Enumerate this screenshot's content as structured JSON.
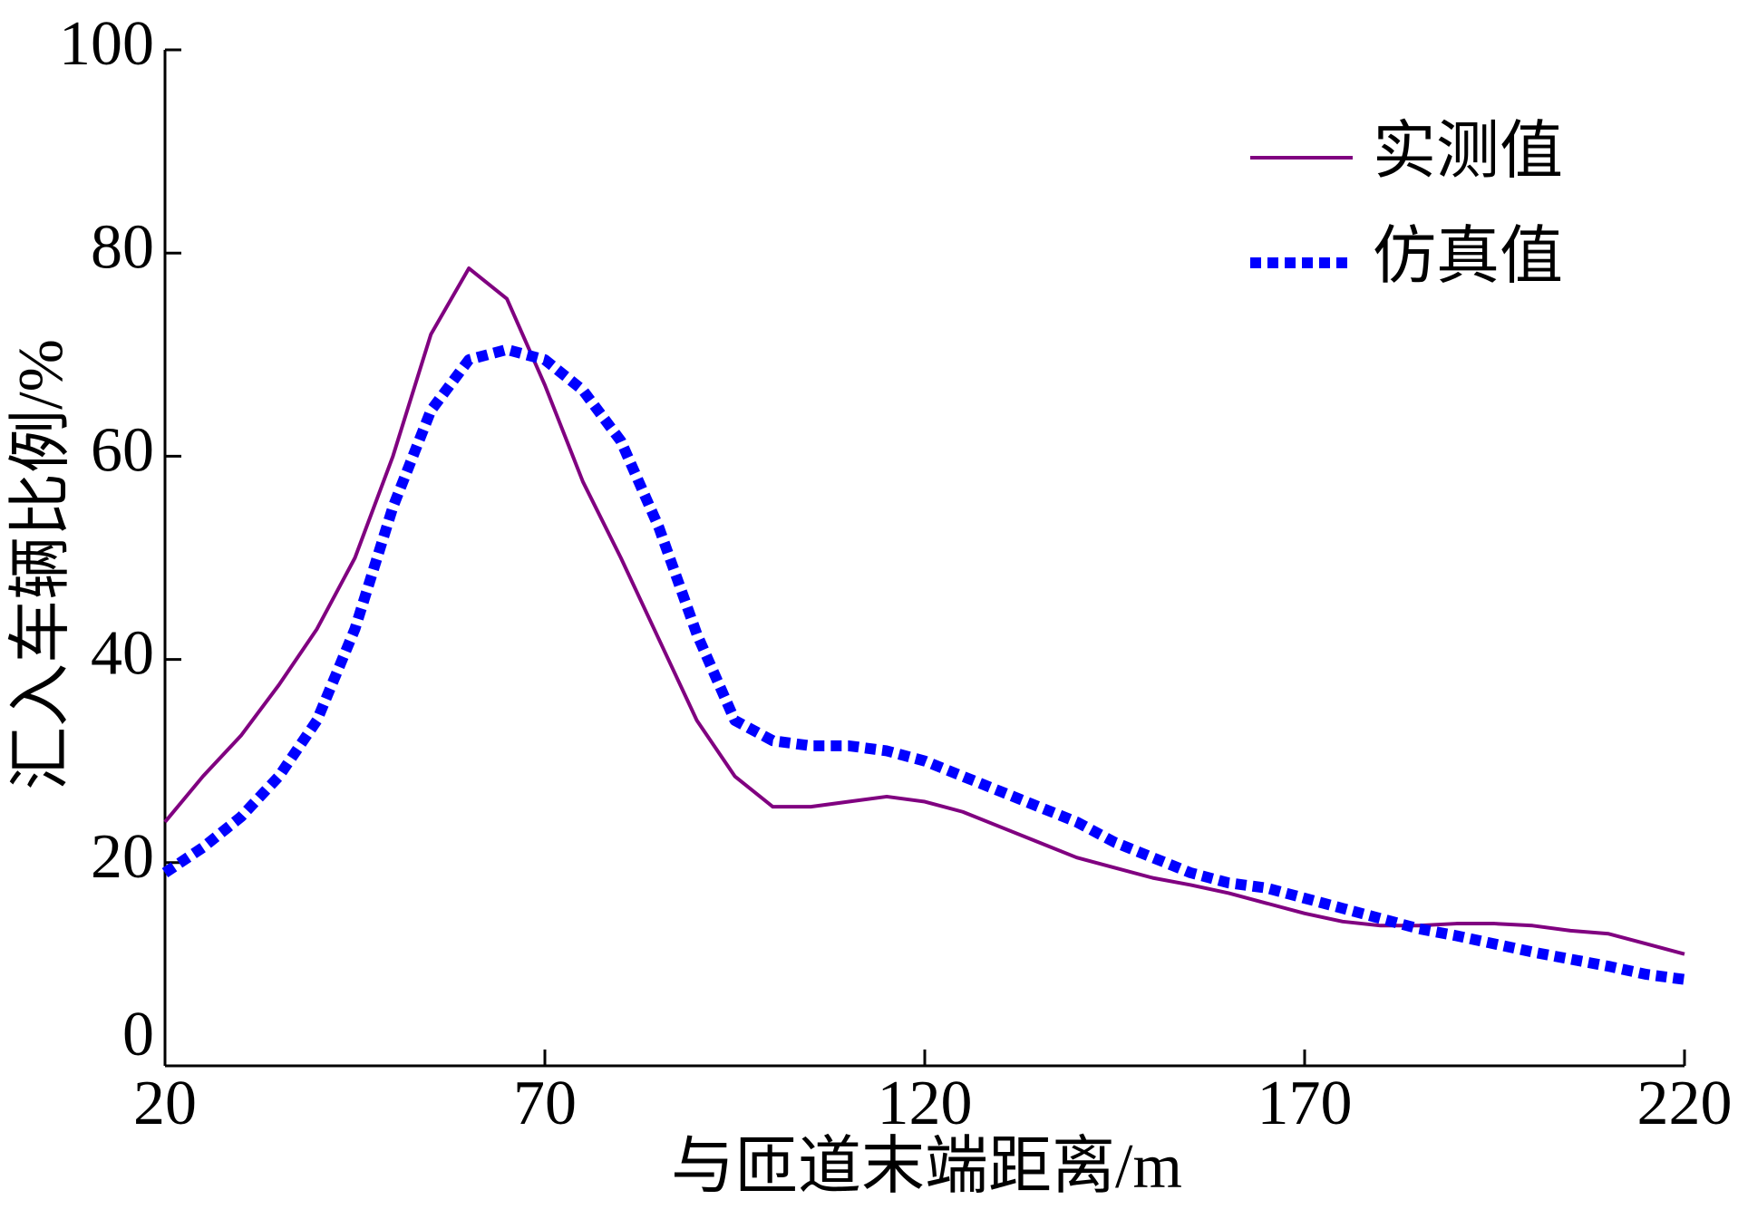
{
  "chart_data": {
    "type": "line",
    "x_label": "与匝道末端距离/m",
    "y_label": "汇入车辆比例/%",
    "x": [
      20,
      25,
      30,
      35,
      40,
      45,
      50,
      55,
      60,
      65,
      70,
      75,
      80,
      85,
      90,
      95,
      100,
      105,
      110,
      115,
      120,
      125,
      130,
      135,
      140,
      145,
      150,
      155,
      160,
      165,
      170,
      175,
      180,
      185,
      190,
      195,
      200,
      205,
      210,
      215,
      220
    ],
    "series": [
      {
        "name": "实测值",
        "color": "#800080",
        "dash": false,
        "values": [
          24,
          28.5,
          32.5,
          37.5,
          43,
          50,
          60,
          72,
          78.5,
          75.5,
          67,
          57.5,
          50,
          42,
          34,
          28.5,
          25.5,
          25.5,
          26,
          26.5,
          26,
          25,
          23.5,
          22,
          20.5,
          19.5,
          18.5,
          17.8,
          17,
          16,
          15,
          14.2,
          13.8,
          13.8,
          14,
          14,
          13.8,
          13.3,
          13,
          12,
          11
        ]
      },
      {
        "name": "仿真值",
        "color": "#0000ff",
        "dash": true,
        "values": [
          19,
          21.5,
          24.5,
          28.5,
          34,
          43,
          55,
          64.5,
          69.5,
          70.5,
          69.5,
          66.5,
          61.5,
          53,
          42.5,
          34,
          32,
          31.5,
          31.5,
          31,
          30,
          28.5,
          27,
          25.5,
          24,
          22,
          20.5,
          19,
          18,
          17.5,
          16.5,
          15.5,
          14.5,
          13.5,
          12.8,
          12,
          11.2,
          10.5,
          9.8,
          9,
          8.5
        ]
      }
    ],
    "xlim": [
      20,
      220
    ],
    "xticks": [
      20,
      70,
      120,
      170,
      220
    ],
    "ylim": [
      0,
      100
    ],
    "yticks": [
      0,
      20,
      40,
      60,
      80,
      100
    ],
    "legend": "upper right"
  }
}
